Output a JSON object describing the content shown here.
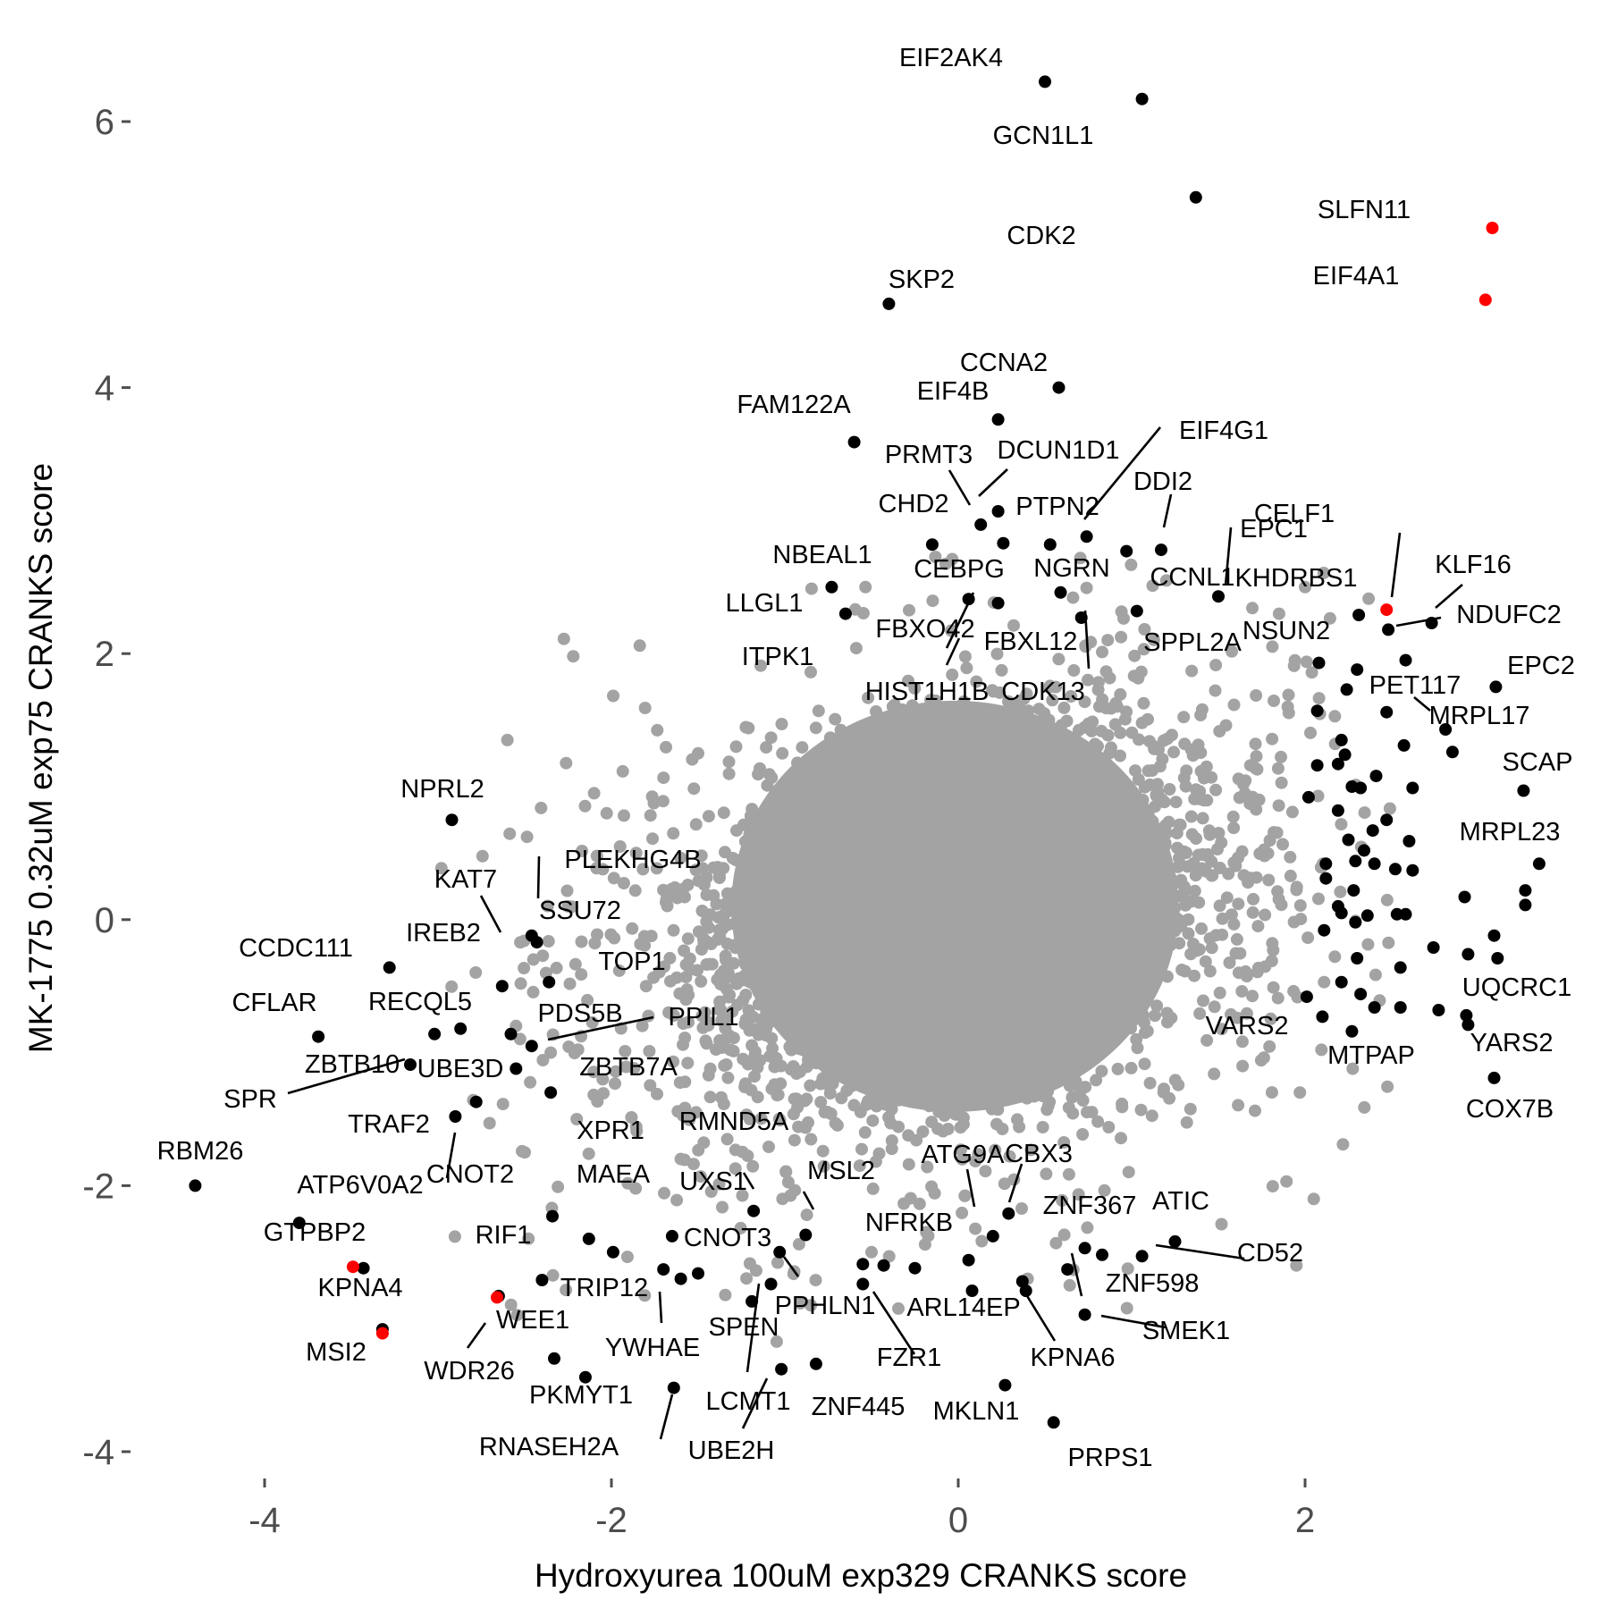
{
  "chart_data": {
    "type": "scatter",
    "xlabel": "Hydroxyurea 100uM exp329 CRANKS score",
    "ylabel": "MK-1775 0.32uM exp75 CRANKS score",
    "xlim": [
      -4.75,
      3.7
    ],
    "ylim": [
      -4.5,
      6.85
    ],
    "x_ticks": [
      {
        "value": -4,
        "label": "-4"
      },
      {
        "value": -2,
        "label": "-2"
      },
      {
        "value": 0,
        "label": "0"
      },
      {
        "value": 2,
        "label": "2"
      }
    ],
    "y_ticks": [
      {
        "value": -4,
        "label": "-4"
      },
      {
        "value": -2,
        "label": "-2"
      },
      {
        "value": 0,
        "label": "0"
      },
      {
        "value": 2,
        "label": "2"
      },
      {
        "value": 4,
        "label": "4"
      },
      {
        "value": 6,
        "label": "6"
      }
    ],
    "grid": false,
    "colors": {
      "background_points": "#a3a3a3",
      "highlighted_points": "#000000",
      "red_points": "#ff0000",
      "tick_text": "#4d4d4d"
    },
    "series": [
      {
        "color": "#a3a3a3",
        "points": [
          [
            -2.22,
            1.98
          ],
          [
            -2.6,
            1.35
          ],
          [
            -2.1,
            0.95
          ],
          [
            -2.25,
            0.1
          ],
          [
            -2.45,
            -0.3
          ],
          [
            -2.35,
            -1.0
          ],
          [
            -2.55,
            -0.8
          ],
          [
            -2.2,
            -1.5
          ],
          [
            -2.5,
            -1.75
          ],
          [
            -2.05,
            -1.2
          ],
          [
            -1.95,
            0.55
          ],
          [
            -1.8,
            -0.5
          ],
          [
            -1.6,
            -1.8
          ],
          [
            -0.85,
            -2.9
          ],
          [
            1.95,
            -2.6
          ],
          [
            1.97,
            -1.3
          ],
          [
            2.1,
            0.4
          ],
          [
            1.9,
            1.6
          ],
          [
            2.0,
            2.5
          ],
          [
            2.05,
            -2.1
          ],
          [
            -1.5,
            1.25
          ],
          [
            1.85,
            2.3
          ],
          [
            1.2,
            2.55
          ],
          [
            -0.5,
            -2.5
          ],
          [
            0.4,
            -2.7
          ]
        ]
      },
      {
        "color": "#000000",
        "points": [
          [
            0.5,
            6.3
          ],
          [
            1.06,
            6.17
          ],
          [
            1.37,
            5.43
          ],
          [
            -0.4,
            4.63
          ],
          [
            0.58,
            4.0
          ],
          [
            0.23,
            3.76
          ],
          [
            -0.6,
            3.59
          ],
          [
            0.13,
            2.97
          ],
          [
            0.23,
            3.07
          ],
          [
            0.53,
            2.82
          ],
          [
            0.74,
            2.88
          ],
          [
            0.97,
            2.77
          ],
          [
            1.17,
            2.78
          ],
          [
            -0.15,
            2.82
          ],
          [
            0.26,
            2.83
          ],
          [
            -0.73,
            2.5
          ],
          [
            -0.65,
            2.3
          ],
          [
            0.06,
            2.41
          ],
          [
            0.59,
            2.46
          ],
          [
            0.23,
            2.38
          ],
          [
            1.5,
            2.43
          ],
          [
            1.03,
            2.32
          ],
          [
            2.31,
            2.29
          ],
          [
            2.48,
            2.18
          ],
          [
            2.73,
            2.23
          ],
          [
            0.71,
            2.27
          ],
          [
            2.08,
            1.93
          ],
          [
            2.58,
            1.95
          ],
          [
            2.3,
            1.88
          ],
          [
            2.24,
            1.73
          ],
          [
            3.1,
            1.75
          ],
          [
            2.07,
            1.57
          ],
          [
            2.47,
            1.56
          ],
          [
            2.81,
            1.43
          ],
          [
            2.85,
            1.26
          ],
          [
            2.21,
            1.35
          ],
          [
            2.23,
            1.24
          ],
          [
            2.57,
            1.31
          ],
          [
            2.19,
            1.17
          ],
          [
            2.41,
            1.08
          ],
          [
            2.07,
            1.16
          ],
          [
            2.27,
            1.0
          ],
          [
            2.32,
            0.99
          ],
          [
            2.02,
            0.92
          ],
          [
            2.19,
            0.82
          ],
          [
            2.62,
            0.99
          ],
          [
            3.26,
            0.97
          ],
          [
            2.47,
            0.75
          ],
          [
            2.25,
            0.6
          ],
          [
            2.39,
            0.67
          ],
          [
            2.6,
            0.59
          ],
          [
            2.34,
            0.52
          ],
          [
            2.4,
            0.42
          ],
          [
            2.52,
            0.38
          ],
          [
            2.62,
            0.37
          ],
          [
            2.12,
            0.42
          ],
          [
            2.29,
            0.44
          ],
          [
            2.12,
            0.31
          ],
          [
            2.28,
            0.22
          ],
          [
            3.35,
            0.42
          ],
          [
            2.21,
            0.05
          ],
          [
            2.36,
            0.03
          ],
          [
            2.58,
            0.04
          ],
          [
            2.29,
            -0.02
          ],
          [
            2.19,
            0.1
          ],
          [
            2.11,
            -0.08
          ],
          [
            2.53,
            0.04
          ],
          [
            2.92,
            0.17
          ],
          [
            3.27,
            0.22
          ],
          [
            3.27,
            0.11
          ],
          [
            2.3,
            -0.29
          ],
          [
            2.55,
            -0.36
          ],
          [
            2.74,
            -0.21
          ],
          [
            2.94,
            -0.26
          ],
          [
            3.11,
            -0.29
          ],
          [
            3.09,
            -0.12
          ],
          [
            2.21,
            -0.47
          ],
          [
            2.32,
            -0.56
          ],
          [
            2.4,
            -0.66
          ],
          [
            2.55,
            -0.66
          ],
          [
            2.01,
            -0.58
          ],
          [
            2.1,
            -0.73
          ],
          [
            2.27,
            -0.84
          ],
          [
            2.77,
            -0.68
          ],
          [
            2.93,
            -0.72
          ],
          [
            2.94,
            -0.79
          ],
          [
            3.09,
            -1.19
          ],
          [
            -2.92,
            0.75
          ],
          [
            -3.28,
            -0.36
          ],
          [
            -2.63,
            -0.5
          ],
          [
            -2.46,
            -0.12
          ],
          [
            -2.43,
            -0.17
          ],
          [
            -2.36,
            -0.47
          ],
          [
            -3.69,
            -0.88
          ],
          [
            -3.02,
            -0.86
          ],
          [
            -2.87,
            -0.82
          ],
          [
            -2.58,
            -0.86
          ],
          [
            -2.46,
            -0.95
          ],
          [
            -2.55,
            -1.12
          ],
          [
            -2.35,
            -1.3
          ],
          [
            -3.16,
            -1.09
          ],
          [
            -2.78,
            -1.37
          ],
          [
            -2.9,
            -1.48
          ],
          [
            -4.4,
            -2.0
          ],
          [
            -3.8,
            -2.28
          ],
          [
            -3.43,
            -2.62
          ],
          [
            -3.32,
            -3.08
          ],
          [
            -2.65,
            -2.83
          ],
          [
            -2.34,
            -2.23
          ],
          [
            -2.13,
            -2.4
          ],
          [
            -1.99,
            -2.5
          ],
          [
            -1.65,
            -2.38
          ],
          [
            -1.5,
            -2.66
          ],
          [
            -1.7,
            -2.63
          ],
          [
            -1.6,
            -2.7
          ],
          [
            -1.19,
            -2.87
          ],
          [
            -2.4,
            -2.71
          ],
          [
            -2.33,
            -3.3
          ],
          [
            -2.15,
            -3.44
          ],
          [
            -1.64,
            -3.52
          ],
          [
            -1.08,
            -2.74
          ],
          [
            -1.03,
            -2.5
          ],
          [
            -1.02,
            -3.38
          ],
          [
            -1.18,
            -2.19
          ],
          [
            -0.82,
            -3.34
          ],
          [
            -0.88,
            -2.37
          ],
          [
            -0.55,
            -2.59
          ],
          [
            -0.43,
            -2.6
          ],
          [
            -0.55,
            -2.74
          ],
          [
            -0.25,
            -2.62
          ],
          [
            0.06,
            -2.56
          ],
          [
            0.08,
            -2.79
          ],
          [
            0.2,
            -2.38
          ],
          [
            0.29,
            -2.21
          ],
          [
            0.73,
            -2.47
          ],
          [
            0.83,
            -2.52
          ],
          [
            0.63,
            -2.63
          ],
          [
            0.37,
            -2.72
          ],
          [
            0.73,
            -2.97
          ],
          [
            1.06,
            -2.53
          ],
          [
            1.25,
            -2.42
          ],
          [
            0.27,
            -3.5
          ],
          [
            0.55,
            -3.78
          ],
          [
            0.39,
            -2.79
          ]
        ]
      },
      {
        "color": "#ff0000",
        "points": [
          [
            3.08,
            5.2
          ],
          [
            3.04,
            4.66
          ],
          [
            2.47,
            2.33
          ],
          [
            -3.49,
            -2.61
          ],
          [
            -3.32,
            -3.11
          ],
          [
            -2.66,
            -2.84
          ]
        ]
      }
    ],
    "annotations": [
      {
        "text": "EIF2AK4",
        "x": 0.5,
        "y": 6.3
      },
      {
        "text": "GCN1L1",
        "x": 1.06,
        "y": 6.17
      },
      {
        "text": "CDK2",
        "x": 1.37,
        "y": 5.43
      },
      {
        "text": "SLFN11",
        "x": 3.08,
        "y": 5.2
      },
      {
        "text": "EIF4A1",
        "x": 3.04,
        "y": 4.66
      },
      {
        "text": "SKP2",
        "x": -0.4,
        "y": 4.63
      },
      {
        "text": "CCNA2",
        "x": 0.58,
        "y": 4.0
      },
      {
        "text": "FAM122A",
        "x": -0.6,
        "y": 3.59
      },
      {
        "text": "EIF4B",
        "x": 0.23,
        "y": 3.76
      },
      {
        "text": "EIF4G1",
        "x": 0.74,
        "y": 2.88
      },
      {
        "text": "PRMT3",
        "x": 0.13,
        "y": 2.97
      },
      {
        "text": "DCUN1D1",
        "x": 0.23,
        "y": 3.07
      },
      {
        "text": "DDI2",
        "x": 1.17,
        "y": 2.78
      },
      {
        "text": "CHD2",
        "x": -0.15,
        "y": 2.82
      },
      {
        "text": "PTPN2",
        "x": 0.53,
        "y": 2.82
      },
      {
        "text": "EPC1",
        "x": 1.5,
        "y": 2.43
      },
      {
        "text": "CELF1",
        "x": 2.47,
        "y": 2.33
      },
      {
        "text": "NBEAL1",
        "x": -0.73,
        "y": 2.5
      },
      {
        "text": "CEBPG",
        "x": 0.06,
        "y": 2.41
      },
      {
        "text": "NGRN",
        "x": 0.59,
        "y": 2.46
      },
      {
        "text": "CCNL1",
        "x": 0.97,
        "y": 2.77
      },
      {
        "text": "KHDRBS1",
        "x": 2.31,
        "y": 2.29
      },
      {
        "text": "KLF16",
        "x": 2.73,
        "y": 2.23
      },
      {
        "text": "LLGL1",
        "x": -0.65,
        "y": 2.3
      },
      {
        "text": "NDUFC2",
        "x": 2.48,
        "y": 2.18
      },
      {
        "text": "FBXO42",
        "x": 0.23,
        "y": 2.38
      },
      {
        "text": "FBXL12",
        "x": 0.74,
        "y": 2.88
      },
      {
        "text": "SPPL2A",
        "x": 1.03,
        "y": 2.32
      },
      {
        "text": "NSUN2",
        "x": 2.08,
        "y": 1.93
      },
      {
        "text": "ITPK1",
        "x": -0.85,
        "y": 1.95
      },
      {
        "text": "EPC2",
        "x": 3.1,
        "y": 1.75
      },
      {
        "text": "HIST1H1B",
        "x": 0.23,
        "y": 2.38
      },
      {
        "text": "CDK13",
        "x": 0.71,
        "y": 2.27
      },
      {
        "text": "PET117",
        "x": 2.58,
        "y": 1.95
      },
      {
        "text": "MRPL17",
        "x": 2.81,
        "y": 1.43
      },
      {
        "text": "SCAP",
        "x": 3.26,
        "y": 0.97
      },
      {
        "text": "NPRL2",
        "x": -2.92,
        "y": 0.75
      },
      {
        "text": "MRPL23",
        "x": 3.35,
        "y": 0.42
      },
      {
        "text": "PLEKHG4B",
        "x": -2.43,
        "y": -0.17
      },
      {
        "text": "KAT7",
        "x": -2.63,
        "y": -0.5
      },
      {
        "text": "SSU72",
        "x": -2.46,
        "y": -0.12
      },
      {
        "text": "IREB2",
        "x": -2.36,
        "y": -0.47
      },
      {
        "text": "CCDC111",
        "x": -3.28,
        "y": -0.36
      },
      {
        "text": "TOP1",
        "x": -2.36,
        "y": -0.47
      },
      {
        "text": "UQCRC1",
        "x": 2.94,
        "y": -0.79
      },
      {
        "text": "RECQL5",
        "x": -3.02,
        "y": -0.86
      },
      {
        "text": "CFLAR",
        "x": -3.69,
        "y": -0.88
      },
      {
        "text": "PDS5B",
        "x": -2.58,
        "y": -0.86
      },
      {
        "text": "PPIL1",
        "x": -2.46,
        "y": -0.95
      },
      {
        "text": "VARS2",
        "x": 2.1,
        "y": -0.73
      },
      {
        "text": "YARS2",
        "x": 3.09,
        "y": -1.19
      },
      {
        "text": "ZBTB10",
        "x": -3.16,
        "y": -1.09
      },
      {
        "text": "UBE3D",
        "x": -2.55,
        "y": -1.12
      },
      {
        "text": "ZBTB7A",
        "x": -2.35,
        "y": -1.3
      },
      {
        "text": "MTPAP",
        "x": 2.1,
        "y": -0.83
      },
      {
        "text": "SPR",
        "x": -3.16,
        "y": -1.09
      },
      {
        "text": "COX7B",
        "x": 3.09,
        "y": -1.19
      },
      {
        "text": "TRAF2",
        "x": -2.9,
        "y": -1.48
      },
      {
        "text": "XPR1",
        "x": -2.35,
        "y": -1.3
      },
      {
        "text": "RMND5A",
        "x": -1.18,
        "y": -2.19
      },
      {
        "text": "RBM26",
        "x": -4.4,
        "y": -2.0
      },
      {
        "text": "ATG9A",
        "x": 0.06,
        "y": -2.56
      },
      {
        "text": "CBX3",
        "x": 0.29,
        "y": -2.21
      },
      {
        "text": "CNOT2",
        "x": -2.9,
        "y": -1.48
      },
      {
        "text": "MAEA",
        "x": -2.34,
        "y": -2.23
      },
      {
        "text": "UXS1",
        "x": -1.18,
        "y": -2.19
      },
      {
        "text": "MSL2",
        "x": -0.88,
        "y": -2.37
      },
      {
        "text": "ATP6V0A2",
        "x": -3.8,
        "y": -2.28
      },
      {
        "text": "ZNF367",
        "x": 0.29,
        "y": -2.21
      },
      {
        "text": "ATIC",
        "x": 1.25,
        "y": -2.42
      },
      {
        "text": "NFRKB",
        "x": 0.06,
        "y": -2.45
      },
      {
        "text": "GTPBP2",
        "x": -3.43,
        "y": -2.62
      },
      {
        "text": "RIF1",
        "x": -2.4,
        "y": -2.71
      },
      {
        "text": "CNOT3",
        "x": -1.03,
        "y": -2.5
      },
      {
        "text": "CD52",
        "x": 1.06,
        "y": -2.53
      },
      {
        "text": "TRIP12",
        "x": -1.7,
        "y": -2.63
      },
      {
        "text": "ZNF598",
        "x": 0.37,
        "y": -2.72
      },
      {
        "text": "KPNA4",
        "x": -3.32,
        "y": -3.08
      },
      {
        "text": "ARL14EP",
        "x": 0.37,
        "y": -2.72
      },
      {
        "text": "PPHLN1",
        "x": -1.03,
        "y": -2.5
      },
      {
        "text": "WEE1",
        "x": -2.65,
        "y": -2.83
      },
      {
        "text": "SPEN",
        "x": -1.08,
        "y": -2.74
      },
      {
        "text": "SMEK1",
        "x": 0.73,
        "y": -2.97
      },
      {
        "text": "YWHAE",
        "x": -1.7,
        "y": -2.63
      },
      {
        "text": "MSI2",
        "x": -3.32,
        "y": -3.11
      },
      {
        "text": "FZR1",
        "x": -1.03,
        "y": -2.5
      },
      {
        "text": "KPNA6",
        "x": 0.39,
        "y": -2.79
      },
      {
        "text": "WDR26",
        "x": -2.65,
        "y": -2.83
      },
      {
        "text": "PKMYT1",
        "x": -2.15,
        "y": -3.44
      },
      {
        "text": "LCMT1",
        "x": -1.08,
        "y": -2.74
      },
      {
        "text": "ZNF445",
        "x": -0.82,
        "y": -3.34
      },
      {
        "text": "MKLN1",
        "x": 0.27,
        "y": -3.5
      },
      {
        "text": "UBE2H",
        "x": -1.02,
        "y": -3.38
      },
      {
        "text": "RNASEH2A",
        "x": -1.64,
        "y": -3.52
      },
      {
        "text": "PRPS1",
        "x": 0.55,
        "y": -3.78
      }
    ]
  }
}
